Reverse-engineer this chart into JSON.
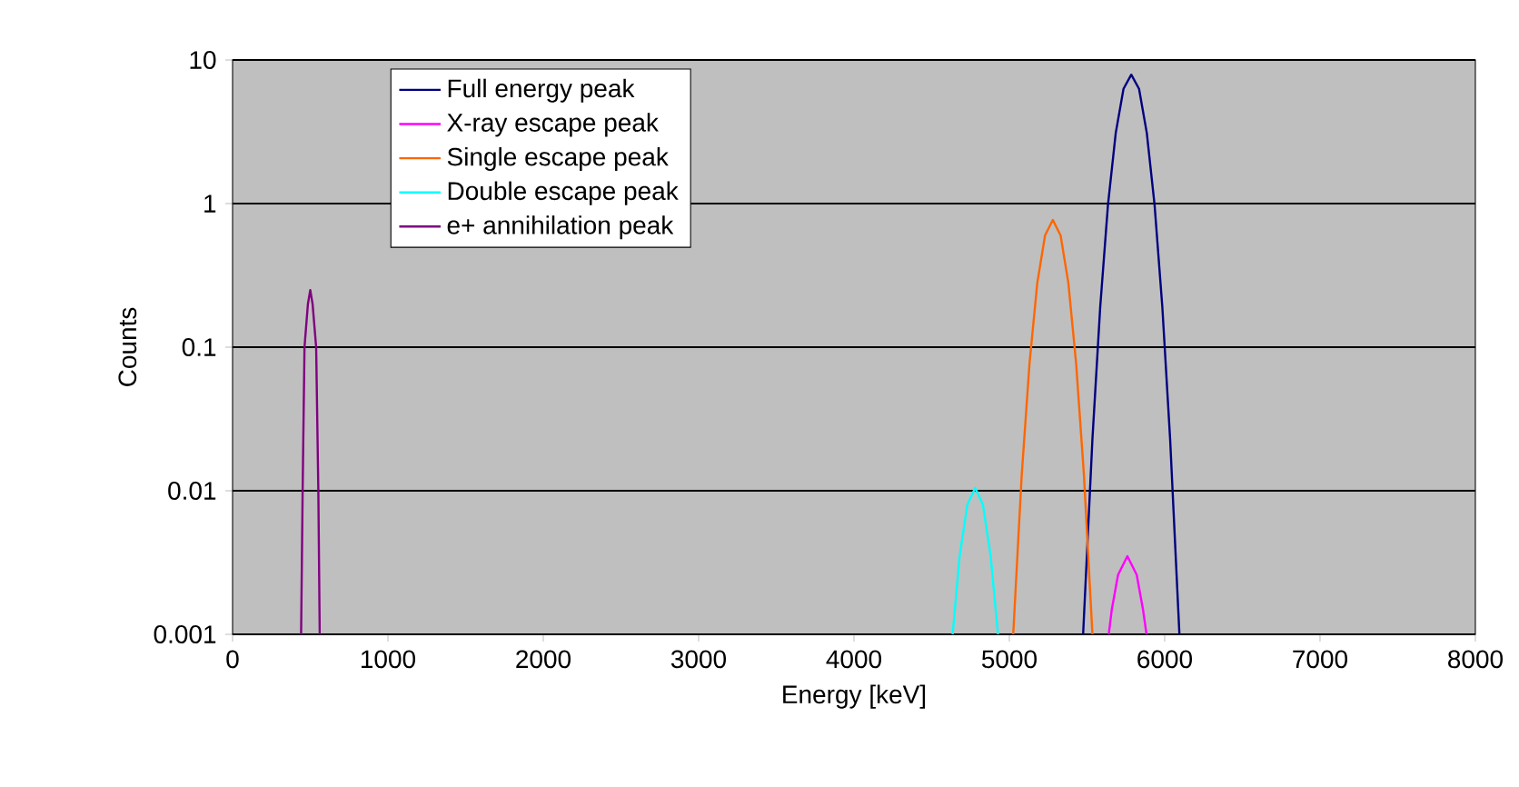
{
  "chart_data": {
    "type": "line",
    "xlabel": "Energy [keV]",
    "ylabel": "Counts",
    "log": "y",
    "xlim": [
      0,
      8000
    ],
    "xticks": [
      0,
      1000,
      2000,
      3000,
      4000,
      5000,
      6000,
      7000,
      8000
    ],
    "ylim": [
      0.001,
      10
    ],
    "yticks": [
      0.001,
      0.01,
      0.1,
      1,
      10
    ],
    "grid": "y",
    "legend": "top left",
    "marker": "none",
    "line_style": "solid",
    "series": [
      {
        "name": "Full energy peak",
        "color": "#000080",
        "x": [
          5475,
          5535,
          5585,
          5635,
          5685,
          5735,
          5785,
          5835,
          5885,
          5935,
          5985,
          6035,
          6095
        ],
        "values": [
          0.001,
          0.023,
          0.19,
          0.98,
          3.1,
          6.3,
          7.9,
          6.3,
          3.1,
          0.98,
          0.19,
          0.023,
          0.001
        ]
      },
      {
        "name": "X-ray escape peak",
        "color": "#ff00ff",
        "x": [
          5640,
          5660,
          5700,
          5760,
          5820,
          5860,
          5883
        ],
        "values": [
          0.001,
          0.0015,
          0.0026,
          0.0035,
          0.0026,
          0.0015,
          0.001
        ]
      },
      {
        "name": "Single escape peak",
        "color": "#ff6600",
        "x": [
          5025,
          5080,
          5130,
          5180,
          5230,
          5280,
          5330,
          5380,
          5430,
          5480,
          5535
        ],
        "values": [
          0.001,
          0.013,
          0.077,
          0.28,
          0.6,
          0.77,
          0.6,
          0.28,
          0.077,
          0.013,
          0.001
        ]
      },
      {
        "name": "Double escape peak",
        "color": "#00ffff",
        "x": [
          4635,
          4680,
          4730,
          4780,
          4830,
          4880,
          4927
        ],
        "values": [
          0.001,
          0.0035,
          0.008,
          0.0105,
          0.008,
          0.0035,
          0.001
        ]
      },
      {
        "name": "e+ annihilation peak",
        "color": "#800080",
        "x": [
          441,
          451,
          463,
          485,
          500,
          515,
          538,
          552,
          561
        ],
        "values": [
          0.001,
          0.01,
          0.1,
          0.2,
          0.25,
          0.2,
          0.1,
          0.01,
          0.001
        ]
      }
    ]
  }
}
